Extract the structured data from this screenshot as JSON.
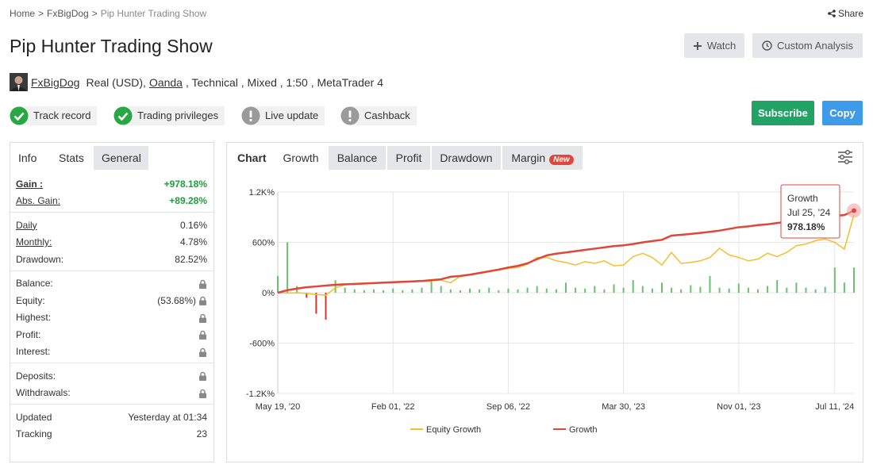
{
  "breadcrumb": {
    "items": [
      "Home",
      "FxBigDog",
      "Pip Hunter Trading Show"
    ],
    "separator": ">"
  },
  "share": "Share",
  "title": "Pip Hunter Trading Show",
  "buttons": {
    "watch": "Watch",
    "custom_analysis": "Custom Analysis",
    "subscribe": "Subscribe",
    "copy": "Copy"
  },
  "account": {
    "user": "FxBigDog",
    "type": "Real (USD),",
    "broker": "Oanda",
    "details": ", Technical , Mixed , 1:50 , MetaTrader 4"
  },
  "badges": [
    {
      "label": "Track record",
      "status": "ok"
    },
    {
      "label": "Trading privileges",
      "status": "ok"
    },
    {
      "label": "Live update",
      "status": "warn"
    },
    {
      "label": "Cashback",
      "status": "warn"
    }
  ],
  "stats": {
    "tabs": [
      "Info",
      "Stats",
      "General"
    ],
    "active_tab": 1,
    "groups": [
      [
        {
          "label": "Gain :",
          "value": "+978.18%",
          "underline": true,
          "highlight": true
        },
        {
          "label": "Abs. Gain:",
          "value": "+89.28%",
          "underline": true,
          "highlight": true
        }
      ],
      [
        {
          "label": "Daily",
          "value": "0.16%",
          "underline": true
        },
        {
          "label": "Monthly:",
          "value": "4.78%",
          "underline": true
        },
        {
          "label": "Drawdown:",
          "value": "82.52%"
        }
      ],
      [
        {
          "label": "Balance:",
          "locked": true
        },
        {
          "label": "Equity:",
          "value": "(53.68%)",
          "locked": true
        },
        {
          "label": "Highest:",
          "locked": true
        },
        {
          "label": "Profit:",
          "locked": true
        },
        {
          "label": "Interest:",
          "locked": true
        }
      ],
      [
        {
          "label": "Deposits:",
          "locked": true
        },
        {
          "label": "Withdrawals:",
          "locked": true
        }
      ],
      [
        {
          "label": "Updated",
          "value": "Yesterday at 01:34"
        },
        {
          "label": "Tracking",
          "value": "23"
        }
      ]
    ]
  },
  "chart_tabs": {
    "heading": "Chart",
    "tabs": [
      "Growth",
      "Balance",
      "Profit",
      "Drawdown",
      "Margin"
    ],
    "active_tab": 0,
    "new_badge": "New"
  },
  "chart_data": {
    "type": "line",
    "categories": [
      "May 19, '20",
      null,
      null,
      null,
      null,
      null,
      null,
      null,
      null,
      null,
      null,
      null,
      "Feb 01, '22",
      null,
      null,
      null,
      null,
      null,
      null,
      null,
      null,
      null,
      null,
      null,
      "Sep 06, '22",
      null,
      null,
      null,
      null,
      null,
      null,
      null,
      null,
      null,
      null,
      null,
      "Mar 30, '23",
      null,
      null,
      null,
      null,
      null,
      null,
      null,
      null,
      null,
      null,
      null,
      "Nov 01, '23",
      null,
      null,
      null,
      null,
      null,
      null,
      null,
      null,
      null,
      "Jul 11, '24",
      null,
      null
    ],
    "series": [
      {
        "name": "Equity Growth",
        "color": "#f3bf2a",
        "values": [
          0,
          -5,
          0,
          -10,
          -20,
          -30,
          60,
          95,
          100,
          105,
          110,
          115,
          120,
          125,
          130,
          135,
          140,
          150,
          120,
          195,
          210,
          230,
          250,
          270,
          290,
          300,
          340,
          420,
          420,
          380,
          360,
          330,
          370,
          350,
          380,
          320,
          330,
          430,
          470,
          420,
          330,
          480,
          350,
          360,
          380,
          420,
          530,
          450,
          420,
          380,
          400,
          470,
          430,
          480,
          560,
          580,
          620,
          640,
          600,
          520,
          930
        ]
      },
      {
        "name": "Growth",
        "color": "#e0463a",
        "values": [
          0,
          30,
          50,
          65,
          75,
          85,
          95,
          100,
          105,
          110,
          115,
          120,
          125,
          130,
          135,
          140,
          150,
          160,
          190,
          200,
          215,
          235,
          255,
          275,
          300,
          320,
          350,
          400,
          445,
          465,
          480,
          495,
          510,
          525,
          540,
          555,
          565,
          580,
          600,
          615,
          630,
          680,
          690,
          700,
          712,
          725,
          740,
          760,
          780,
          790,
          805,
          815,
          830,
          845,
          870,
          880,
          890,
          905,
          915,
          925,
          978.18
        ]
      }
    ],
    "bars": {
      "positive_color": "#6cc070",
      "negative_color": "#d9342b",
      "values": [
        200,
        600,
        80,
        -60,
        -250,
        -320,
        150,
        60,
        40,
        30,
        40,
        30,
        50,
        30,
        40,
        60,
        150,
        80,
        40,
        30,
        50,
        40,
        60,
        30,
        50,
        40,
        60,
        80,
        50,
        40,
        120,
        60,
        50,
        80,
        40,
        100,
        60,
        150,
        80,
        50,
        120,
        60,
        40,
        90,
        70,
        200,
        60,
        50,
        110,
        60,
        40,
        80,
        150,
        60,
        120,
        60,
        40,
        70,
        300,
        120,
        300
      ]
    },
    "ylim": [
      -1200,
      1200
    ],
    "yticks": [
      {
        "value": -1200,
        "label": "-1.2K%"
      },
      {
        "value": -600,
        "label": "-600%"
      },
      {
        "value": 0,
        "label": "0%"
      },
      {
        "value": 600,
        "label": "600%"
      },
      {
        "value": 1200,
        "label": "1.2K%"
      }
    ],
    "grid": true,
    "legend": "bottom",
    "tooltip": {
      "series": "Growth",
      "date": "Jul 25, '24",
      "value_label": "978.18%"
    }
  }
}
